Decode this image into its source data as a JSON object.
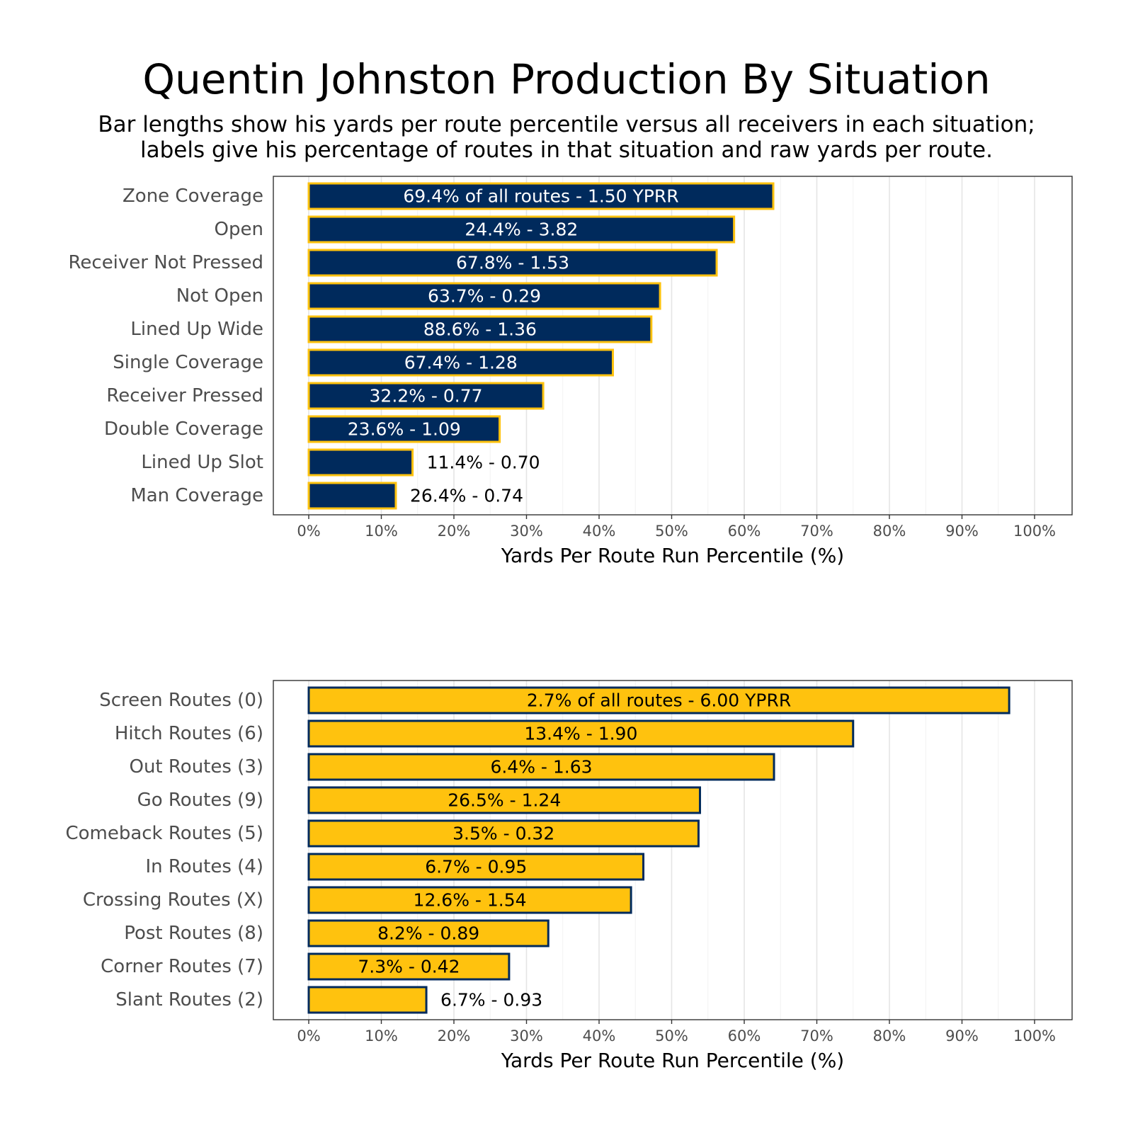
{
  "title": "Quentin Johnston Production By Situation",
  "subtitle": [
    "Bar lengths show his yards per route percentile versus all receivers in each situation;",
    "labels give his percentage of routes in that situation and raw yards per route."
  ],
  "colors": {
    "navy": "#002a5c",
    "gold": "#ffc20e",
    "grid": "#e5e5e5",
    "panel_border": "#333333",
    "axis_text": "#4d4d4d"
  },
  "chart_data": [
    {
      "type": "bar",
      "orientation": "horizontal",
      "fill_color": "#002a5c",
      "outline_color": "#ffc20e",
      "inside_label_color": "#ffffff",
      "categories": [
        "Zone Coverage",
        "Open",
        "Receiver Not Pressed",
        "Not Open",
        "Lined Up Wide",
        "Single Coverage",
        "Receiver Pressed",
        "Double Coverage",
        "Lined Up Slot",
        "Man Coverage"
      ],
      "values": [
        64,
        58.6,
        56.2,
        48.4,
        47.2,
        41.9,
        32.3,
        26.3,
        14.3,
        12
      ],
      "labels": [
        "69.4% of all routes - 1.50 YPRR",
        "24.4% - 3.82",
        "67.8% - 1.53",
        "63.7% - 0.29",
        "88.6% - 1.36",
        "67.4% - 1.28",
        "32.2% - 0.77",
        "23.6% - 1.09",
        "11.4% - 0.70",
        "26.4% - 0.74"
      ],
      "xlabel": "Yards Per Route Run Percentile (%)",
      "xlim": [
        0,
        100
      ],
      "xticks": [
        "0%",
        "10%",
        "20%",
        "30%",
        "40%",
        "50%",
        "60%",
        "70%",
        "80%",
        "90%",
        "100%"
      ],
      "grid": true
    },
    {
      "type": "bar",
      "orientation": "horizontal",
      "fill_color": "#ffc20e",
      "outline_color": "#002a5c",
      "inside_label_color": "#000000",
      "categories": [
        "Screen Routes (0)",
        "Hitch Routes (6)",
        "Out Routes (3)",
        "Go Routes (9)",
        "Comeback Routes (5)",
        "In Routes (4)",
        "Crossing Routes (X)",
        "Post Routes (8)",
        "Corner Routes (7)",
        "Slant Routes (2)"
      ],
      "values": [
        96.5,
        75,
        64.1,
        53.9,
        53.7,
        46.1,
        44.4,
        33,
        27.6,
        16.2
      ],
      "labels": [
        "2.7% of all routes - 6.00 YPRR",
        "13.4% - 1.90",
        "6.4% - 1.63",
        "26.5% - 1.24",
        "3.5% - 0.32",
        "6.7% - 0.95",
        "12.6% - 1.54",
        "8.2% - 0.89",
        "7.3% - 0.42",
        "6.7% - 0.93"
      ],
      "xlabel": "Yards Per Route Run Percentile (%)",
      "xlim": [
        0,
        100
      ],
      "xticks": [
        "0%",
        "10%",
        "20%",
        "30%",
        "40%",
        "50%",
        "60%",
        "70%",
        "80%",
        "90%",
        "100%"
      ],
      "grid": true
    }
  ]
}
